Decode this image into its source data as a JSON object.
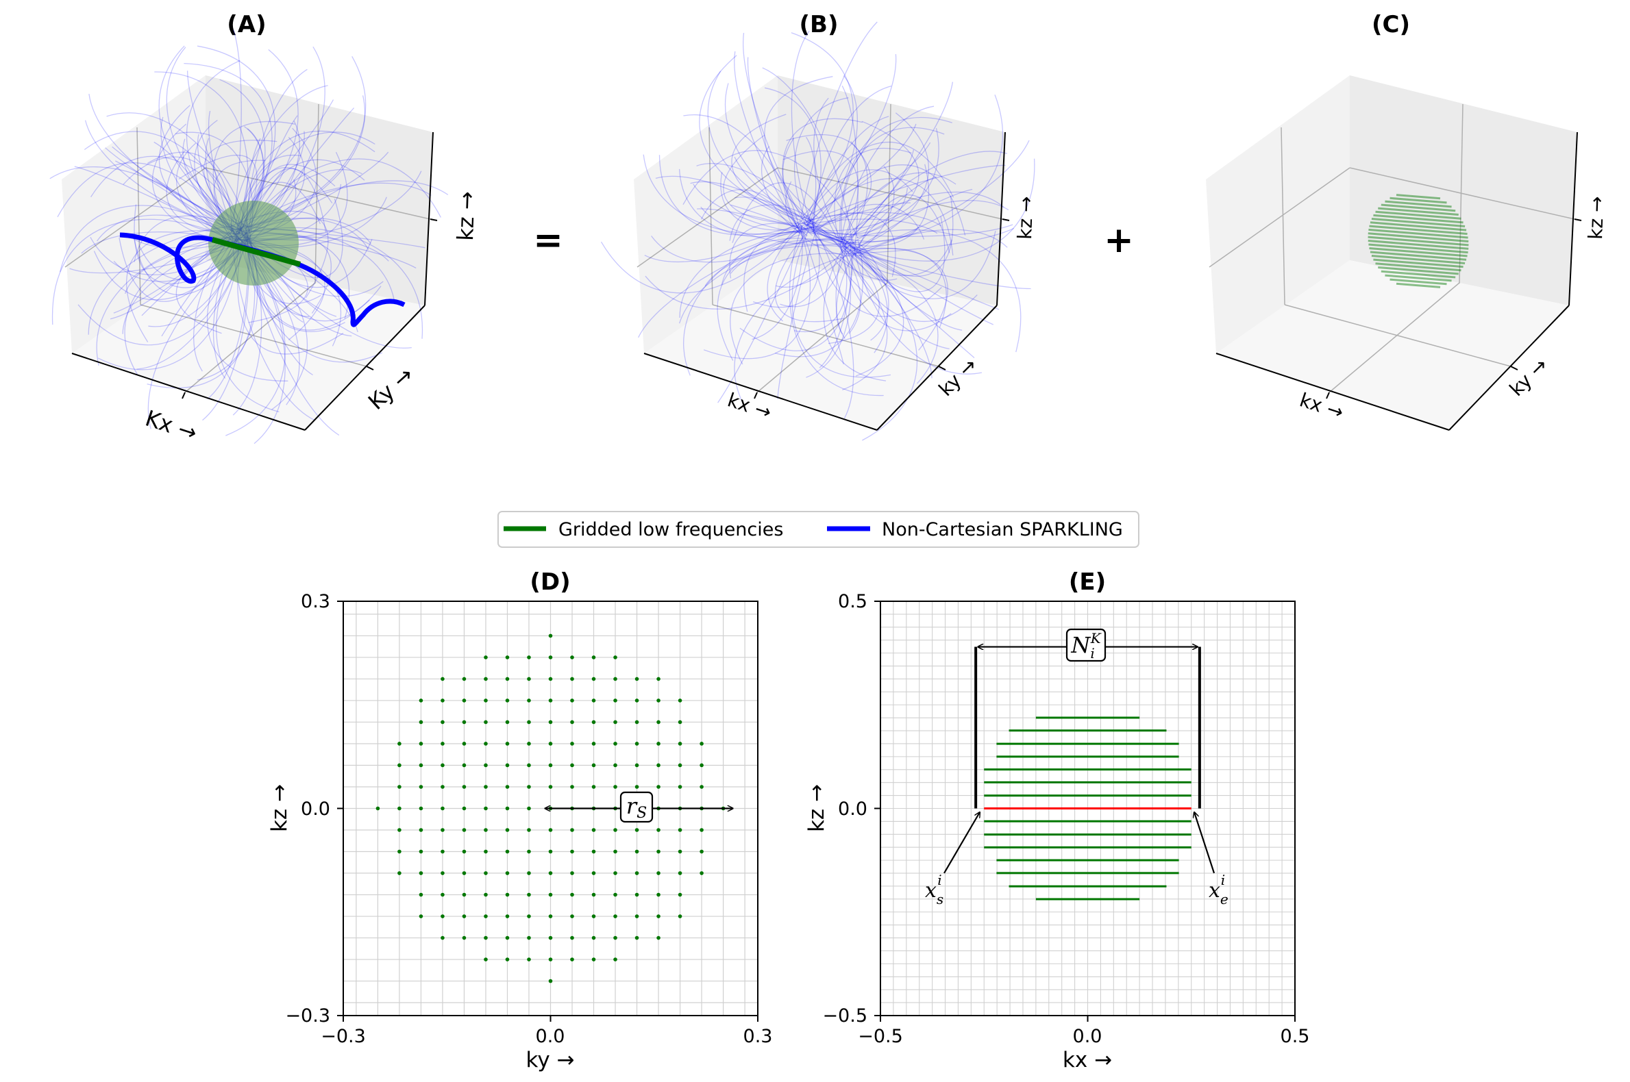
{
  "panels": {
    "a": {
      "title": "(A)",
      "kx_label": "Kx →",
      "ky_label": "Ky →",
      "kz_label": "kz →"
    },
    "b": {
      "title": "(B)",
      "kx_label": "kx →",
      "ky_label": "ky →",
      "kz_label": "kz →"
    },
    "c": {
      "title": "(C)",
      "kx_label": "kx →",
      "ky_label": "ky →",
      "kz_label": "kz →"
    },
    "d": {
      "title": "(D)",
      "xlabel": "ky →",
      "ylabel": "kz →",
      "annotation": "rS"
    },
    "e": {
      "title": "(E)",
      "xlabel": "kx →",
      "ylabel": "kz →",
      "annotation_top": "N_i^K",
      "annotation_left": "x_s^i",
      "annotation_right": "x_e^i"
    }
  },
  "operators": {
    "equals": "=",
    "plus": "+"
  },
  "legend": {
    "items": [
      {
        "label": "Gridded low frequencies",
        "color": "#007700"
      },
      {
        "label": "Non-Cartesian SPARKLING",
        "color": "#0000ff"
      }
    ]
  },
  "colors": {
    "green": "#007700",
    "blue": "#0000ff",
    "red": "#ff0000",
    "grid": "#cccccc",
    "pane": "#f2f2f2"
  },
  "chart_data": [
    {
      "type": "scatter",
      "title": "(D)",
      "xlabel": "ky →",
      "ylabel": "kz →",
      "xlim": [
        -0.3,
        0.3
      ],
      "ylim": [
        -0.3,
        0.3
      ],
      "xticks": [
        "−0.3",
        "0.0",
        "0.3"
      ],
      "yticks": [
        "−0.3",
        "0.0",
        "0.3"
      ],
      "grid": true,
      "point_spacing": 0.03125,
      "disc_radius": 0.25,
      "series": [
        {
          "name": "Gridded low frequencies",
          "color": "#007700"
        }
      ],
      "annotation": {
        "label": "rS",
        "from": [
          0.0,
          0.0
        ],
        "to": [
          0.26,
          0.0
        ]
      }
    },
    {
      "type": "line",
      "title": "(E)",
      "xlabel": "kx →",
      "ylabel": "kz →",
      "xlim": [
        -0.5,
        0.5
      ],
      "ylim": [
        -0.5,
        0.5
      ],
      "xticks": [
        "−0.5",
        "0.0",
        "0.5"
      ],
      "yticks": [
        "−0.5",
        "0.0",
        "0.5"
      ],
      "grid": true,
      "segments": [
        {
          "y": 0.219,
          "x": [
            -0.125,
            0.125
          ]
        },
        {
          "y": 0.188,
          "x": [
            -0.19,
            0.19
          ]
        },
        {
          "y": 0.156,
          "x": [
            -0.22,
            0.22
          ]
        },
        {
          "y": 0.125,
          "x": [
            -0.22,
            0.22
          ]
        },
        {
          "y": 0.094,
          "x": [
            -0.25,
            0.25
          ]
        },
        {
          "y": 0.063,
          "x": [
            -0.25,
            0.25
          ]
        },
        {
          "y": 0.031,
          "x": [
            -0.25,
            0.25
          ]
        },
        {
          "y": 0.0,
          "x": [
            -0.25,
            0.25
          ],
          "highlight": true
        },
        {
          "y": -0.031,
          "x": [
            -0.25,
            0.25
          ]
        },
        {
          "y": -0.063,
          "x": [
            -0.25,
            0.25
          ]
        },
        {
          "y": -0.094,
          "x": [
            -0.25,
            0.25
          ]
        },
        {
          "y": -0.125,
          "x": [
            -0.22,
            0.22
          ]
        },
        {
          "y": -0.156,
          "x": [
            -0.22,
            0.22
          ]
        },
        {
          "y": -0.188,
          "x": [
            -0.19,
            0.19
          ]
        },
        {
          "y": -0.219,
          "x": [
            -0.125,
            0.125
          ]
        }
      ],
      "bracket": {
        "x": [
          -0.27,
          0.27
        ],
        "y": [
          0.0,
          0.39
        ]
      }
    }
  ]
}
